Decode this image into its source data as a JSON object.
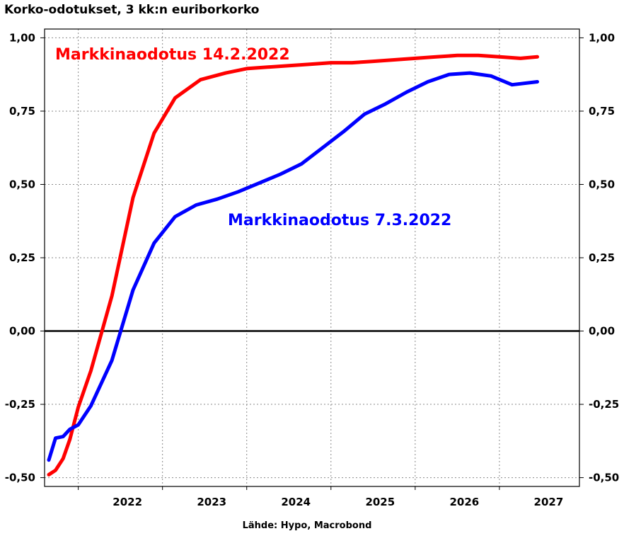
{
  "chart_data": {
    "type": "line",
    "title": "Korko-odotukset, 3 kk:n euriborkorko",
    "source": "Lähde: Hypo, Macrobond",
    "xlabel": "",
    "ylabel": "",
    "x_tick_labels": [
      "2022",
      "2023",
      "2024",
      "2025",
      "2026",
      "2027"
    ],
    "xlim": [
      2021.6,
      2027.95
    ],
    "ylim": [
      -0.53,
      1.03
    ],
    "y_ticks": [
      -0.5,
      -0.25,
      0,
      0.25,
      0.5,
      0.75,
      1.0
    ],
    "y_tick_labels": [
      "-0,50",
      "-0,25",
      "0,00",
      "0,25",
      "0,50",
      "0,75",
      "1,00"
    ],
    "grid": true,
    "zero_line": true,
    "dual_axis_labels": true,
    "series": [
      {
        "name": "Markkinaodotus 14.2.2022",
        "color": "#ff0000",
        "x": [
          2021.65,
          2021.73,
          2021.82,
          2021.9,
          2022.0,
          2022.15,
          2022.4,
          2022.65,
          2022.9,
          2023.15,
          2023.45,
          2023.75,
          2024.0,
          2024.25,
          2024.5,
          2024.75,
          2025.0,
          2025.25,
          2025.5,
          2025.75,
          2026.0,
          2026.25,
          2026.5,
          2026.75,
          2027.0,
          2027.25,
          2027.45
        ],
        "y": [
          -0.49,
          -0.475,
          -0.435,
          -0.37,
          -0.26,
          -0.135,
          0.12,
          0.455,
          0.675,
          0.795,
          0.857,
          0.88,
          0.895,
          0.9,
          0.905,
          0.91,
          0.915,
          0.915,
          0.92,
          0.925,
          0.93,
          0.935,
          0.94,
          0.94,
          0.935,
          0.93,
          0.935
        ]
      },
      {
        "name": "Markkinaodotus 7.3.2022",
        "color": "#0000ff",
        "x": [
          2021.65,
          2021.73,
          2021.82,
          2021.9,
          2022.0,
          2022.15,
          2022.4,
          2022.65,
          2022.9,
          2023.15,
          2023.4,
          2023.65,
          2023.9,
          2024.15,
          2024.4,
          2024.65,
          2024.9,
          2025.15,
          2025.4,
          2025.65,
          2025.9,
          2026.15,
          2026.4,
          2026.65,
          2026.9,
          2027.15,
          2027.45
        ],
        "y": [
          -0.44,
          -0.365,
          -0.36,
          -0.335,
          -0.32,
          -0.255,
          -0.1,
          0.14,
          0.3,
          0.39,
          0.43,
          0.45,
          0.475,
          0.505,
          0.535,
          0.57,
          0.625,
          0.68,
          0.74,
          0.775,
          0.815,
          0.85,
          0.875,
          0.88,
          0.87,
          0.84,
          0.85
        ]
      }
    ]
  }
}
